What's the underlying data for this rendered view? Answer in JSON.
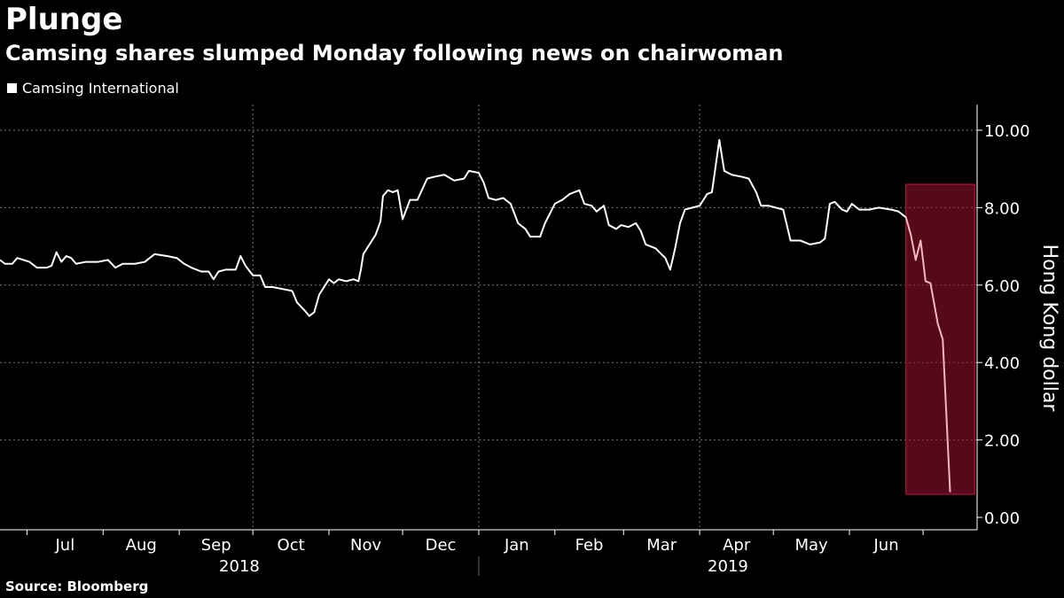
{
  "chart_data": {
    "type": "line",
    "title": "Plunge",
    "subtitle": "Camsing shares slumped Monday following news on chairwoman",
    "legend": "Camsing International",
    "ylabel": "Hong Kong dollar",
    "source": "Source: Bloomberg",
    "ylim": [
      0,
      10.6
    ],
    "yticks": [
      0,
      2,
      4,
      6,
      8,
      10
    ],
    "ytick_labels": [
      "0.00",
      "2.00",
      "4.00",
      "6.00",
      "8.00",
      "10.00"
    ],
    "xlim": [
      "2018-06-20",
      "2019-07-23"
    ],
    "months": [
      {
        "label": "Jul",
        "date": "2018-07-01"
      },
      {
        "label": "Aug",
        "date": "2018-08-01"
      },
      {
        "label": "Sep",
        "date": "2018-09-01"
      },
      {
        "label": "Oct",
        "date": "2018-10-01"
      },
      {
        "label": "Nov",
        "date": "2018-11-01"
      },
      {
        "label": "Dec",
        "date": "2018-12-01"
      },
      {
        "label": "Jan",
        "date": "2019-01-01"
      },
      {
        "label": "Feb",
        "date": "2019-02-01"
      },
      {
        "label": "Mar",
        "date": "2019-03-01"
      },
      {
        "label": "Apr",
        "date": "2019-04-01"
      },
      {
        "label": "May",
        "date": "2019-05-01"
      },
      {
        "label": "Jun",
        "date": "2019-06-01"
      }
    ],
    "years": [
      {
        "label": "2018",
        "start": "2018-06-20",
        "end": "2019-01-01"
      },
      {
        "label": "2019",
        "start": "2019-01-01",
        "end": "2019-07-23"
      }
    ],
    "highlight": {
      "start": "2019-06-24",
      "end": "2019-07-22",
      "ymin": 0.6,
      "ymax": 8.6,
      "color": "#9b1030"
    },
    "series": [
      {
        "name": "Camsing International",
        "color": "#ffffff",
        "highlight_color": "#f3b6c2",
        "points": [
          [
            "2018-06-20",
            6.65
          ],
          [
            "2018-06-22",
            6.55
          ],
          [
            "2018-06-25",
            6.55
          ],
          [
            "2018-06-27",
            6.7
          ],
          [
            "2018-07-02",
            6.6
          ],
          [
            "2018-07-05",
            6.45
          ],
          [
            "2018-07-09",
            6.45
          ],
          [
            "2018-07-11",
            6.5
          ],
          [
            "2018-07-13",
            6.85
          ],
          [
            "2018-07-15",
            6.6
          ],
          [
            "2018-07-17",
            6.75
          ],
          [
            "2018-07-19",
            6.7
          ],
          [
            "2018-07-21",
            6.55
          ],
          [
            "2018-07-25",
            6.6
          ],
          [
            "2018-07-30",
            6.6
          ],
          [
            "2018-08-03",
            6.65
          ],
          [
            "2018-08-06",
            6.45
          ],
          [
            "2018-08-09",
            6.55
          ],
          [
            "2018-08-14",
            6.55
          ],
          [
            "2018-08-18",
            6.6
          ],
          [
            "2018-08-22",
            6.8
          ],
          [
            "2018-08-27",
            6.75
          ],
          [
            "2018-08-31",
            6.7
          ],
          [
            "2018-09-03",
            6.55
          ],
          [
            "2018-09-06",
            6.45
          ],
          [
            "2018-09-10",
            6.35
          ],
          [
            "2018-09-13",
            6.35
          ],
          [
            "2018-09-15",
            6.15
          ],
          [
            "2018-09-17",
            6.35
          ],
          [
            "2018-09-20",
            6.4
          ],
          [
            "2018-09-24",
            6.4
          ],
          [
            "2018-09-26",
            6.75
          ],
          [
            "2018-09-28",
            6.5
          ],
          [
            "2018-10-01",
            6.25
          ],
          [
            "2018-10-04",
            6.25
          ],
          [
            "2018-10-06",
            5.95
          ],
          [
            "2018-10-09",
            5.95
          ],
          [
            "2018-10-13",
            5.9
          ],
          [
            "2018-10-17",
            5.85
          ],
          [
            "2018-10-19",
            5.55
          ],
          [
            "2018-10-22",
            5.35
          ],
          [
            "2018-10-24",
            5.2
          ],
          [
            "2018-10-26",
            5.3
          ],
          [
            "2018-10-28",
            5.75
          ],
          [
            "2018-10-31",
            6.05
          ],
          [
            "2018-11-01",
            6.15
          ],
          [
            "2018-11-03",
            6.05
          ],
          [
            "2018-11-05",
            6.15
          ],
          [
            "2018-11-08",
            6.1
          ],
          [
            "2018-11-11",
            6.15
          ],
          [
            "2018-11-13",
            6.1
          ],
          [
            "2018-11-14",
            6.4
          ],
          [
            "2018-11-15",
            6.8
          ],
          [
            "2018-11-18",
            7.1
          ],
          [
            "2018-11-20",
            7.3
          ],
          [
            "2018-11-22",
            7.65
          ],
          [
            "2018-11-23",
            8.3
          ],
          [
            "2018-11-25",
            8.45
          ],
          [
            "2018-11-27",
            8.4
          ],
          [
            "2018-11-29",
            8.45
          ],
          [
            "2018-12-01",
            7.7
          ],
          [
            "2018-12-04",
            8.2
          ],
          [
            "2018-12-07",
            8.2
          ],
          [
            "2018-12-11",
            8.75
          ],
          [
            "2018-12-14",
            8.8
          ],
          [
            "2018-12-18",
            8.85
          ],
          [
            "2018-12-22",
            8.7
          ],
          [
            "2018-12-26",
            8.75
          ],
          [
            "2018-12-28",
            8.95
          ],
          [
            "2019-01-01",
            8.9
          ],
          [
            "2019-01-03",
            8.65
          ],
          [
            "2019-01-05",
            8.25
          ],
          [
            "2019-01-08",
            8.2
          ],
          [
            "2019-01-11",
            8.25
          ],
          [
            "2019-01-14",
            8.1
          ],
          [
            "2019-01-17",
            7.6
          ],
          [
            "2019-01-20",
            7.45
          ],
          [
            "2019-01-22",
            7.25
          ],
          [
            "2019-01-26",
            7.25
          ],
          [
            "2019-01-28",
            7.6
          ],
          [
            "2019-02-01",
            8.1
          ],
          [
            "2019-02-04",
            8.2
          ],
          [
            "2019-02-07",
            8.35
          ],
          [
            "2019-02-11",
            8.45
          ],
          [
            "2019-02-13",
            8.1
          ],
          [
            "2019-02-16",
            8.05
          ],
          [
            "2019-02-18",
            7.9
          ],
          [
            "2019-02-21",
            8.05
          ],
          [
            "2019-02-23",
            7.55
          ],
          [
            "2019-02-26",
            7.45
          ],
          [
            "2019-02-28",
            7.55
          ],
          [
            "2019-03-03",
            7.5
          ],
          [
            "2019-03-06",
            7.6
          ],
          [
            "2019-03-08",
            7.4
          ],
          [
            "2019-03-10",
            7.05
          ],
          [
            "2019-03-14",
            6.95
          ],
          [
            "2019-03-18",
            6.7
          ],
          [
            "2019-03-20",
            6.4
          ],
          [
            "2019-03-22",
            6.95
          ],
          [
            "2019-03-24",
            7.6
          ],
          [
            "2019-03-26",
            7.95
          ],
          [
            "2019-03-29",
            8.0
          ],
          [
            "2019-04-01",
            8.05
          ],
          [
            "2019-04-04",
            8.35
          ],
          [
            "2019-04-06",
            8.4
          ],
          [
            "2019-04-09",
            9.75
          ],
          [
            "2019-04-11",
            8.95
          ],
          [
            "2019-04-14",
            8.85
          ],
          [
            "2019-04-18",
            8.8
          ],
          [
            "2019-04-21",
            8.75
          ],
          [
            "2019-04-24",
            8.4
          ],
          [
            "2019-04-26",
            8.05
          ],
          [
            "2019-04-29",
            8.05
          ],
          [
            "2019-05-02",
            8.0
          ],
          [
            "2019-05-05",
            7.95
          ],
          [
            "2019-05-08",
            7.15
          ],
          [
            "2019-05-12",
            7.15
          ],
          [
            "2019-05-16",
            7.05
          ],
          [
            "2019-05-20",
            7.1
          ],
          [
            "2019-05-22",
            7.2
          ],
          [
            "2019-05-24",
            8.1
          ],
          [
            "2019-05-26",
            8.15
          ],
          [
            "2019-05-29",
            7.95
          ],
          [
            "2019-05-31",
            7.9
          ],
          [
            "2019-06-02",
            8.1
          ],
          [
            "2019-06-05",
            7.95
          ],
          [
            "2019-06-09",
            7.95
          ],
          [
            "2019-06-13",
            8.0
          ],
          [
            "2019-06-18",
            7.95
          ],
          [
            "2019-06-21",
            7.9
          ],
          [
            "2019-06-24",
            7.75
          ],
          [
            "2019-06-26",
            7.3
          ],
          [
            "2019-06-28",
            6.65
          ],
          [
            "2019-06-30",
            7.15
          ],
          [
            "2019-07-02",
            6.1
          ],
          [
            "2019-07-04",
            6.05
          ],
          [
            "2019-07-07",
            5.0
          ],
          [
            "2019-07-09",
            4.6
          ],
          [
            "2019-07-12",
            0.65
          ]
        ]
      }
    ]
  }
}
